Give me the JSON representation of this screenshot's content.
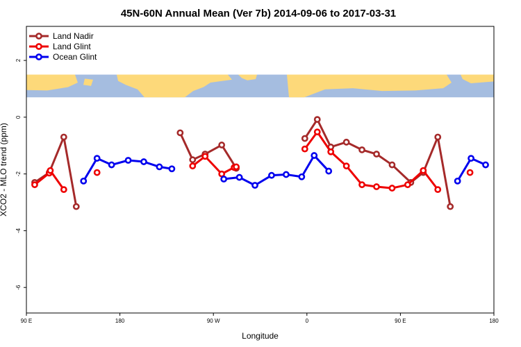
{
  "chart_data": {
    "type": "line",
    "title": "45N-60N Annual Mean (Ver 7b)   2014-09-06 to 2017-03-31",
    "xlabel": "Longitude",
    "ylabel": "XCO2 - MLO trend (ppm)",
    "x_ticks": [
      {
        "pos": 90,
        "label": "90 E"
      },
      {
        "pos": 180,
        "label": "180"
      },
      {
        "pos": 270,
        "label": "90 W"
      },
      {
        "pos": 360,
        "label": "0"
      },
      {
        "pos": 450,
        "label": "90 E"
      },
      {
        "pos": 540,
        "label": "180"
      }
    ],
    "y_ticks": [
      -6,
      -4,
      -2,
      0,
      2
    ],
    "xlim": [
      90,
      540
    ],
    "ylim": [
      -6.9,
      3.2
    ],
    "map_band": {
      "ymin": 0.7,
      "ymax": 1.5,
      "ocean_color": "#a5bde0",
      "land_color": "#fdd97a"
    },
    "legend": {
      "position": "top-left"
    },
    "series": [
      {
        "name": "Land Nadir",
        "color": "#a52a2a",
        "segments": [
          [
            [
              98,
              -2.3
            ],
            [
              112,
              -1.95
            ],
            [
              126,
              -0.7
            ],
            [
              138,
              -3.15
            ]
          ],
          [
            [
              238,
              -0.55
            ],
            [
              250,
              -1.5
            ],
            [
              262,
              -1.3
            ],
            [
              278,
              -0.98
            ],
            [
              292,
              -1.8
            ]
          ],
          [
            [
              358,
              -0.75
            ],
            [
              370,
              -0.08
            ],
            [
              383,
              -1.05
            ],
            [
              398,
              -0.88
            ],
            [
              413,
              -1.15
            ],
            [
              427,
              -1.3
            ],
            [
              442,
              -1.68
            ],
            [
              460,
              -2.3
            ],
            [
              472,
              -1.95
            ],
            [
              486,
              -0.7
            ],
            [
              498,
              -3.15
            ]
          ]
        ]
      },
      {
        "name": "Land Glint",
        "color": "#ee0000",
        "segments": [
          [
            [
              98,
              -2.38
            ],
            [
              112,
              -1.97
            ],
            [
              113,
              -1.88
            ],
            [
              126,
              -2.55
            ]
          ],
          [
            [
              158,
              -1.95
            ]
          ],
          [
            [
              250,
              -1.72
            ],
            [
              262,
              -1.38
            ],
            [
              278,
              -2.0
            ],
            [
              290,
              -1.77
            ],
            [
              292,
              -1.75
            ]
          ],
          [
            [
              358,
              -1.12
            ],
            [
              370,
              -0.52
            ],
            [
              383,
              -1.22
            ],
            [
              398,
              -1.72
            ],
            [
              413,
              -2.38
            ],
            [
              427,
              -2.45
            ],
            [
              442,
              -2.5
            ],
            [
              457,
              -2.38
            ],
            [
              472,
              -1.88
            ],
            [
              486,
              -2.55
            ]
          ],
          [
            [
              517,
              -1.95
            ]
          ]
        ]
      },
      {
        "name": "Ocean Glint",
        "color": "#0000ee",
        "segments": [
          [
            [
              145,
              -2.25
            ],
            [
              158,
              -1.45
            ],
            [
              172,
              -1.68
            ],
            [
              188,
              -1.52
            ],
            [
              203,
              -1.57
            ],
            [
              218,
              -1.75
            ],
            [
              230,
              -1.82
            ]
          ],
          [
            [
              280,
              -2.18
            ],
            [
              295,
              -2.12
            ],
            [
              310,
              -2.4
            ],
            [
              326,
              -2.05
            ],
            [
              340,
              -2.02
            ],
            [
              355,
              -2.1
            ],
            [
              367,
              -1.35
            ],
            [
              381,
              -1.9
            ]
          ],
          [
            [
              505,
              -2.25
            ],
            [
              518,
              -1.45
            ],
            [
              532,
              -1.68
            ]
          ]
        ]
      }
    ]
  }
}
